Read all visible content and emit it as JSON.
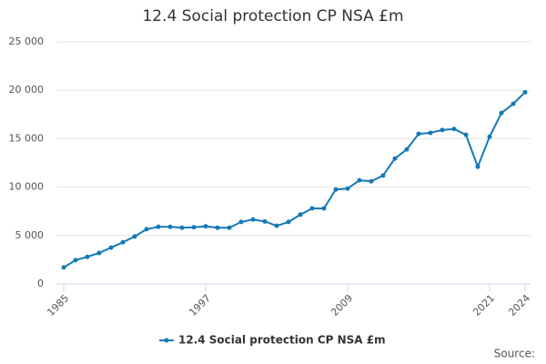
{
  "chart_data": {
    "type": "line",
    "title": "12.4 Social protection CP NSA £m",
    "x": [
      1985,
      1986,
      1987,
      1988,
      1989,
      1990,
      1991,
      1992,
      1993,
      1994,
      1995,
      1996,
      1997,
      1998,
      1999,
      2000,
      2001,
      2002,
      2003,
      2004,
      2005,
      2006,
      2007,
      2008,
      2009,
      2010,
      2011,
      2012,
      2013,
      2014,
      2015,
      2016,
      2017,
      2018,
      2019,
      2020,
      2021,
      2022,
      2023,
      2024
    ],
    "series": [
      {
        "name": "12.4 Social protection CP NSA £m",
        "color": "#1479b8",
        "values": [
          1700,
          2450,
          2800,
          3200,
          3750,
          4300,
          4900,
          5650,
          5900,
          5900,
          5800,
          5850,
          5950,
          5800,
          5800,
          6400,
          6650,
          6450,
          6000,
          6400,
          7150,
          7800,
          7800,
          9750,
          9850,
          10700,
          10600,
          11200,
          12950,
          13900,
          15500,
          15600,
          15900,
          16000,
          15400,
          12100,
          15200,
          17650,
          18600,
          19800
        ]
      }
    ],
    "xlim": [
      1985,
      2024
    ],
    "xticks": [
      1985,
      1997,
      2009,
      2021,
      2024
    ],
    "ylim": [
      0,
      25000
    ],
    "yticks": [
      0,
      {
        "value": 5000,
        "label": "5 000"
      },
      {
        "value": 10000,
        "label": "10 000"
      },
      {
        "value": 15000,
        "label": "15 000"
      },
      {
        "value": 20000,
        "label": "20 000"
      },
      {
        "value": 25000,
        "label": "25 000"
      }
    ],
    "grid": true,
    "legend": "bottom",
    "source": "Source:"
  }
}
